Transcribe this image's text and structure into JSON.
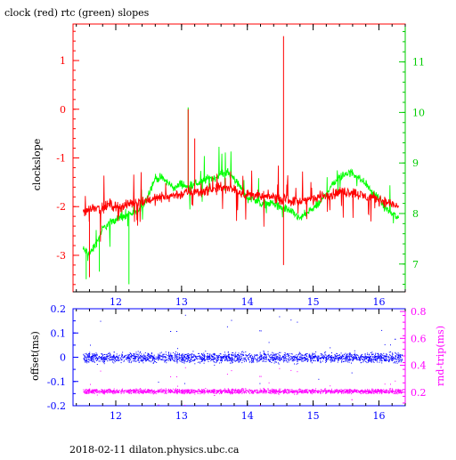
{
  "chart_data": [
    {
      "type": "line",
      "title": "clock (red) rtc (green) slopes",
      "ylabel": "clockslope",
      "xlim": [
        11.35,
        16.4
      ],
      "ylim": [
        -3.75,
        1.75
      ],
      "y2lim": [
        6.45,
        11.75
      ],
      "x_ticks": [
        "12",
        "13",
        "14",
        "15",
        "16"
      ],
      "y_ticks": [
        "-3",
        "-2",
        "-1",
        "0",
        "1"
      ],
      "y2_ticks": [
        "7",
        "8",
        "9",
        "10",
        "11"
      ],
      "series": [
        {
          "name": "clock (red)",
          "color": "#ff0000",
          "axis": "left",
          "x": [
            11.5,
            11.6,
            11.7,
            11.8,
            11.9,
            12.0,
            12.1,
            12.2,
            12.3,
            12.4,
            12.5,
            12.6,
            12.7,
            12.8,
            12.9,
            13.0,
            13.1,
            13.2,
            13.3,
            13.4,
            13.5,
            13.6,
            13.7,
            13.8,
            13.9,
            14.0,
            14.1,
            14.2,
            14.3,
            14.4,
            14.5,
            14.6,
            14.7,
            14.8,
            14.9,
            15.0,
            15.1,
            15.2,
            15.3,
            15.4,
            15.5,
            15.6,
            15.7,
            15.8,
            15.9,
            16.0,
            16.1,
            16.2,
            16.3
          ],
          "y": [
            -2.1,
            -2.05,
            -2.0,
            -2.05,
            -1.95,
            -2.0,
            -2.0,
            -1.95,
            -1.9,
            -1.9,
            -1.85,
            -1.85,
            -1.8,
            -1.8,
            -1.75,
            -1.75,
            -1.7,
            -1.7,
            -1.7,
            -1.65,
            -1.65,
            -1.6,
            -1.65,
            -1.65,
            -1.7,
            -1.75,
            -1.75,
            -1.8,
            -1.8,
            -1.8,
            -1.85,
            -1.85,
            -1.9,
            -1.9,
            -1.85,
            -1.85,
            -1.8,
            -1.75,
            -1.75,
            -1.7,
            -1.7,
            -1.7,
            -1.75,
            -1.8,
            -1.8,
            -1.85,
            -1.9,
            -1.95,
            -2.0
          ],
          "spikes": [
            {
              "x": 11.6,
              "y": -3.45
            },
            {
              "x": 13.1,
              "y": 0.0
            },
            {
              "x": 13.2,
              "y": -0.6
            },
            {
              "x": 14.55,
              "y": 1.5
            },
            {
              "x": 14.55,
              "y": -3.2
            }
          ]
        },
        {
          "name": "rtc (green)",
          "color": "#00ff00",
          "axis": "right",
          "x": [
            11.5,
            11.6,
            11.7,
            11.8,
            11.9,
            12.0,
            12.1,
            12.2,
            12.3,
            12.4,
            12.5,
            12.6,
            12.7,
            12.8,
            12.9,
            13.0,
            13.1,
            13.2,
            13.3,
            13.4,
            13.5,
            13.6,
            13.7,
            13.8,
            13.9,
            14.0,
            14.1,
            14.2,
            14.3,
            14.4,
            14.5,
            14.6,
            14.7,
            14.8,
            14.9,
            15.0,
            15.1,
            15.2,
            15.3,
            15.4,
            15.5,
            15.6,
            15.7,
            15.8,
            15.9,
            16.0,
            16.1,
            16.2,
            16.3
          ],
          "y": [
            7.3,
            7.2,
            7.4,
            7.7,
            7.8,
            7.9,
            7.9,
            8.0,
            8.0,
            8.1,
            8.4,
            8.7,
            8.7,
            8.6,
            8.5,
            8.6,
            8.5,
            8.6,
            8.6,
            8.7,
            8.7,
            8.8,
            8.8,
            8.7,
            8.5,
            8.3,
            8.3,
            8.2,
            8.2,
            8.2,
            8.1,
            8.1,
            8.0,
            7.9,
            8.0,
            8.1,
            8.2,
            8.4,
            8.6,
            8.7,
            8.8,
            8.8,
            8.7,
            8.6,
            8.4,
            8.3,
            8.1,
            8.0,
            7.9
          ],
          "spikes": [
            {
              "x": 11.55,
              "y": 6.7
            },
            {
              "x": 11.75,
              "y": 6.85
            },
            {
              "x": 12.2,
              "y": 6.6
            },
            {
              "x": 13.1,
              "y": 10.1
            }
          ]
        }
      ]
    },
    {
      "type": "scatter",
      "xlabel": "",
      "ylabel": "offset(ms)",
      "y2label": "rnd-trip(ms)",
      "xlim": [
        11.35,
        16.4
      ],
      "ylim": [
        -0.2,
        0.2
      ],
      "y2lim": [
        0.1,
        0.82
      ],
      "x_ticks": [
        "12",
        "13",
        "14",
        "15",
        "16"
      ],
      "y_ticks": [
        "-0.2",
        "-0.1",
        "0",
        "0.1",
        "0.2"
      ],
      "y2_ticks": [
        "0.2",
        "0.4",
        "0.6",
        "0.8"
      ],
      "series": [
        {
          "name": "offset",
          "color": "#0000ff",
          "axis": "left",
          "center": 0.0,
          "spread": 0.03,
          "x_range": [
            11.5,
            16.35
          ]
        },
        {
          "name": "rnd-trip",
          "color": "#ff00ff",
          "axis": "right",
          "center": 0.21,
          "spread": 0.025,
          "x_range": [
            11.5,
            16.35
          ]
        }
      ]
    }
  ],
  "footer": "2018-02-11  dilaton.physics.ubc.ca"
}
